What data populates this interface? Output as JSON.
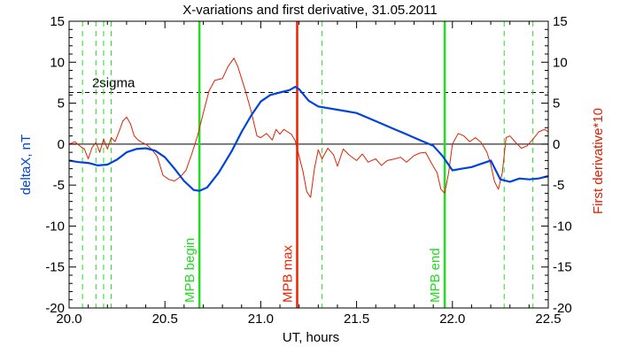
{
  "chart_data": {
    "type": "line",
    "title": "X-variations and first derivative, 31.05.2011",
    "xlabel": "UT, hours",
    "ylabel_left": "deltaX, nT",
    "ylabel_right": "First derivative*10",
    "xlim": [
      20.0,
      22.5
    ],
    "ylim": [
      -20,
      15
    ],
    "ylim_right": [
      -20,
      15
    ],
    "x_ticks": [
      20.0,
      20.5,
      21.0,
      21.5,
      22.0,
      22.5
    ],
    "x_tick_labels": [
      "20.0",
      "20.5",
      "21.0",
      "21.5",
      "22.0",
      "22.5"
    ],
    "y_ticks": [
      15,
      10,
      5,
      0,
      -5,
      -10,
      -15,
      -20
    ],
    "y_tick_labels": [
      "15",
      "10",
      "5",
      "0",
      "-5",
      "-10",
      "-15",
      "-20"
    ],
    "grid": false,
    "colors": {
      "deltaX": "#0044dd",
      "derivative": "#dd2200",
      "mpb_green": "#22dd22",
      "mpb_red": "#ee2200",
      "axis_left_label": "#0044dd",
      "axis_right_label": "#dd2200"
    },
    "horizontal_lines": [
      {
        "y": 0,
        "style": "solid",
        "color": "#000000"
      },
      {
        "y": 6.3,
        "style": "dashed",
        "color": "#000000",
        "label": "2sigma",
        "label_x": 20.12,
        "label_y": 7.5
      }
    ],
    "vertical_lines": [
      {
        "x": 20.68,
        "style": "solid",
        "color": "#22dd22",
        "label": "MPB begin"
      },
      {
        "x": 21.19,
        "style": "solid",
        "color": "#ee2200",
        "label": "MPB max"
      },
      {
        "x": 21.96,
        "style": "solid",
        "color": "#22dd22",
        "label": "MPB end"
      },
      {
        "x": 20.07,
        "style": "dashed",
        "color": "#22dd22"
      },
      {
        "x": 20.14,
        "style": "dashed",
        "color": "#22dd22"
      },
      {
        "x": 20.18,
        "style": "dashed",
        "color": "#22dd22"
      },
      {
        "x": 20.22,
        "style": "dashed",
        "color": "#22dd22"
      },
      {
        "x": 21.32,
        "style": "dashed",
        "color": "#22dd22"
      },
      {
        "x": 22.27,
        "style": "dashed",
        "color": "#22dd22"
      },
      {
        "x": 22.42,
        "style": "dashed",
        "color": "#22dd22"
      }
    ],
    "series": [
      {
        "key": "deltaX",
        "color": "#0044dd",
        "width": 2.2,
        "x": [
          20.0,
          20.05,
          20.1,
          20.15,
          20.2,
          20.25,
          20.3,
          20.35,
          20.4,
          20.45,
          20.5,
          20.55,
          20.6,
          20.65,
          20.68,
          20.72,
          20.78,
          20.85,
          20.9,
          20.95,
          21.0,
          21.05,
          21.1,
          21.15,
          21.18,
          21.2,
          21.25,
          21.3,
          21.4,
          21.5,
          21.6,
          21.7,
          21.75,
          21.8,
          21.85,
          21.9,
          21.95,
          22.0,
          22.05,
          22.1,
          22.15,
          22.2,
          22.25,
          22.3,
          22.35,
          22.4,
          22.45,
          22.5
        ],
        "values": [
          -2.0,
          -2.2,
          -2.3,
          -2.6,
          -2.5,
          -1.9,
          -1.0,
          -0.6,
          -0.5,
          -0.8,
          -1.6,
          -3.0,
          -4.5,
          -5.6,
          -5.7,
          -5.3,
          -3.5,
          -0.8,
          1.5,
          3.5,
          5.2,
          6.0,
          6.3,
          6.6,
          7.0,
          6.7,
          5.3,
          4.6,
          4.2,
          3.8,
          2.8,
          1.8,
          1.3,
          0.8,
          0.3,
          -0.2,
          -1.5,
          -3.2,
          -3.0,
          -2.8,
          -2.4,
          -2.0,
          -4.3,
          -4.6,
          -4.2,
          -4.3,
          -4.2,
          -3.9
        ]
      },
      {
        "key": "derivative",
        "color": "#dd2200",
        "width": 1,
        "x": [
          20.0,
          20.03,
          20.06,
          20.08,
          20.1,
          20.12,
          20.14,
          20.16,
          20.18,
          20.2,
          20.22,
          20.24,
          20.26,
          20.28,
          20.3,
          20.32,
          20.34,
          20.36,
          20.38,
          20.4,
          20.43,
          20.46,
          20.49,
          20.52,
          20.55,
          20.58,
          20.61,
          20.64,
          20.67,
          20.7,
          20.73,
          20.76,
          20.8,
          20.83,
          20.86,
          20.88,
          20.9,
          20.92,
          20.95,
          20.98,
          21.0,
          21.03,
          21.06,
          21.08,
          21.1,
          21.12,
          21.14,
          21.16,
          21.18,
          21.2,
          21.22,
          21.24,
          21.26,
          21.28,
          21.3,
          21.32,
          21.35,
          21.38,
          21.4,
          21.43,
          21.46,
          21.5,
          21.53,
          21.56,
          21.6,
          21.63,
          21.66,
          21.7,
          21.73,
          21.76,
          21.8,
          21.83,
          21.86,
          21.89,
          21.92,
          21.94,
          21.96,
          21.98,
          22.0,
          22.03,
          22.06,
          22.09,
          22.12,
          22.15,
          22.18,
          22.2,
          22.22,
          22.24,
          22.26,
          22.28,
          22.3,
          22.33,
          22.36,
          22.39,
          22.42,
          22.45,
          22.48,
          22.5
        ],
        "values": [
          0.0,
          0.3,
          -0.3,
          -0.6,
          -1.8,
          -0.4,
          0.2,
          -1.0,
          0.6,
          -0.6,
          0.8,
          0.3,
          1.5,
          2.8,
          3.3,
          2.5,
          1.0,
          0.5,
          0.2,
          0.0,
          -0.6,
          -1.5,
          -3.8,
          -4.3,
          -4.5,
          -4.0,
          -3.2,
          -1.2,
          1.0,
          3.8,
          6.5,
          7.8,
          8.0,
          9.5,
          10.5,
          9.5,
          8.0,
          6.5,
          4.0,
          1.0,
          0.8,
          1.3,
          0.5,
          1.8,
          1.2,
          1.8,
          1.5,
          1.2,
          0.4,
          -1.5,
          -3.3,
          -5.8,
          -6.5,
          -3.0,
          -0.7,
          -1.8,
          -0.5,
          -1.3,
          -2.7,
          -0.6,
          -1.3,
          -2.0,
          -1.2,
          -2.2,
          -1.8,
          -2.6,
          -2.0,
          -1.8,
          -1.6,
          -2.2,
          -1.4,
          -1.1,
          -1.0,
          -2.3,
          -3.5,
          -5.5,
          -6.0,
          -3.5,
          0.0,
          1.3,
          1.0,
          0.3,
          0.8,
          0.2,
          -1.0,
          -2.5,
          -4.6,
          -5.5,
          -3.5,
          0.8,
          1.0,
          0.2,
          -0.5,
          -0.2,
          0.6,
          1.5,
          1.8,
          1.5
        ]
      }
    ]
  }
}
